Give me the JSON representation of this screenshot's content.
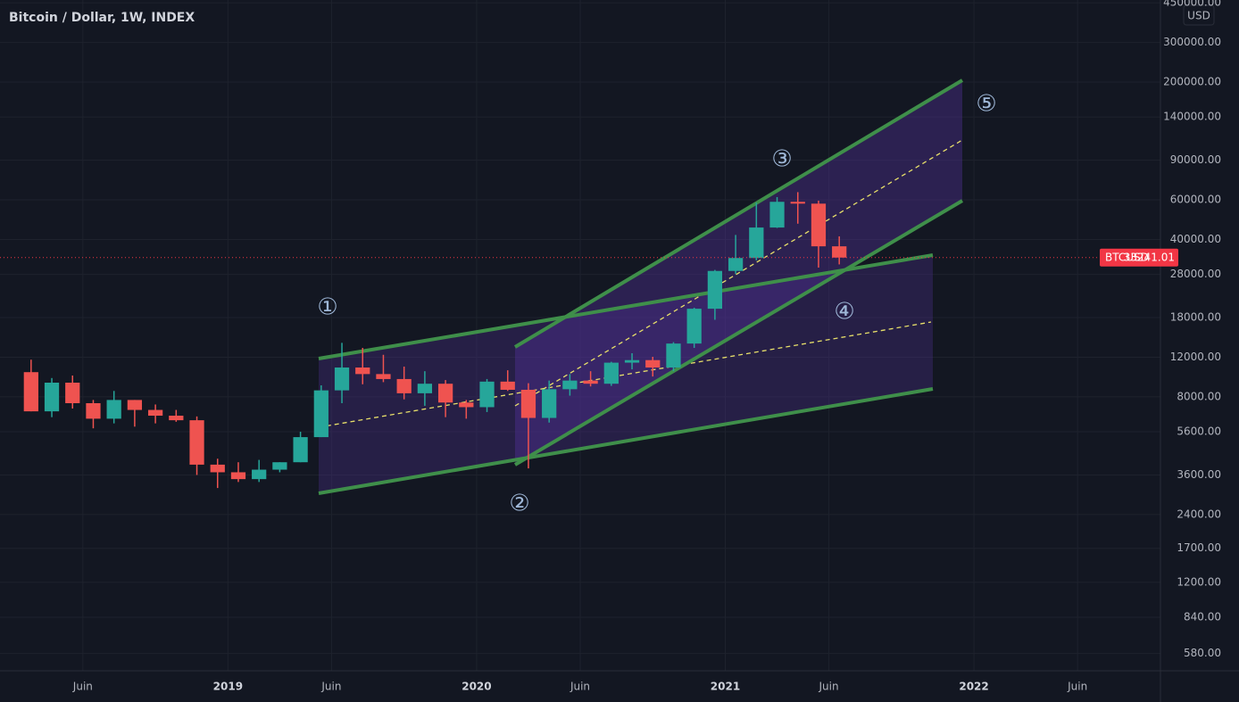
{
  "chart_data": {
    "type": "candlestick",
    "title": "Bitcoin / Dollar, 1W, INDEX",
    "currency": "USD",
    "x": [
      "2018-03",
      "2018-04",
      "2018-05",
      "2018-06",
      "2018-07",
      "2018-08",
      "2018-09",
      "2018-10",
      "2018-11",
      "2018-12",
      "2019-01",
      "2019-02",
      "2019-03",
      "2019-04",
      "2019-05",
      "2019-06",
      "2019-07",
      "2019-08",
      "2019-09",
      "2019-10",
      "2019-11",
      "2019-12",
      "2020-01",
      "2020-02",
      "2020-03",
      "2020-04",
      "2020-05",
      "2020-06",
      "2020-07",
      "2020-08",
      "2020-09",
      "2020-10",
      "2020-11",
      "2020-12",
      "2021-01",
      "2021-02",
      "2021-03",
      "2021-04",
      "2021-05",
      "2021-06"
    ],
    "open": [
      10300,
      6900,
      9250,
      7500,
      6400,
      7750,
      7000,
      6600,
      6300,
      4000,
      3700,
      3450,
      3800,
      4100,
      5300,
      8550,
      10800,
      10100,
      9600,
      8300,
      9150,
      7550,
      7200,
      9350,
      8600,
      6450,
      8650,
      9450,
      9150,
      11350,
      11650,
      10800,
      13800,
      19700,
      29000,
      33100,
      45200,
      58800,
      57700,
      37300
    ],
    "high": [
      11700,
      9700,
      9950,
      7750,
      8500,
      7750,
      7400,
      7000,
      6550,
      4250,
      4100,
      4200,
      4100,
      5600,
      9000,
      13900,
      13200,
      12300,
      10900,
      10400,
      9500,
      7750,
      9600,
      10500,
      9200,
      9450,
      10100,
      10400,
      11450,
      12500,
      12050,
      14000,
      19900,
      29300,
      41900,
      58300,
      61700,
      64900,
      59500,
      41300
    ],
    "low": [
      6900,
      6500,
      7100,
      5800,
      6100,
      5900,
      6100,
      6200,
      3600,
      3150,
      3350,
      3350,
      3700,
      4100,
      5300,
      7500,
      9100,
      9300,
      7800,
      7300,
      6500,
      6400,
      6850,
      8500,
      3850,
      6150,
      8100,
      8900,
      8950,
      10600,
      9850,
      10400,
      13200,
      17600,
      28100,
      32300,
      45000,
      47000,
      30000,
      31000
    ],
    "close": [
      6900,
      9250,
      7500,
      6400,
      7750,
      7000,
      6600,
      6300,
      4000,
      3700,
      3450,
      3800,
      4100,
      5300,
      8550,
      10800,
      10100,
      9600,
      8300,
      9150,
      7550,
      7200,
      9350,
      8600,
      6450,
      8650,
      9450,
      9150,
      11350,
      11650,
      10800,
      13800,
      19700,
      29000,
      33100,
      45200,
      58800,
      57700,
      37300,
      33241.01
    ],
    "up_color": "#26a69a",
    "down_color": "#ef5350",
    "log_scale": true,
    "grid": true,
    "xlim": [
      "2018-02",
      "2022-10"
    ],
    "xticks": [
      {
        "value": "2018-06",
        "label": "Juin"
      },
      {
        "value": "2019-01",
        "label": "2019"
      },
      {
        "value": "2019-06",
        "label": "Juin"
      },
      {
        "value": "2020-01",
        "label": "2020"
      },
      {
        "value": "2020-06",
        "label": "Juin"
      },
      {
        "value": "2021-01",
        "label": "2021"
      },
      {
        "value": "2021-06",
        "label": "Juin"
      },
      {
        "value": "2022-01",
        "label": "2022"
      },
      {
        "value": "2022-06",
        "label": "Juin"
      }
    ],
    "ylim": [
      486,
      463000
    ],
    "yticks": [
      {
        "value": 580,
        "label": "580.00"
      },
      {
        "value": 840,
        "label": "840.00"
      },
      {
        "value": 1200,
        "label": "1200.00"
      },
      {
        "value": 1700,
        "label": "1700.00"
      },
      {
        "value": 2400,
        "label": "2400.00"
      },
      {
        "value": 3600,
        "label": "3600.00"
      },
      {
        "value": 5600,
        "label": "5600.00"
      },
      {
        "value": 8000,
        "label": "8000.00"
      },
      {
        "value": 12000,
        "label": "12000.00"
      },
      {
        "value": 18000,
        "label": "18000.00"
      },
      {
        "value": 28000,
        "label": "28000.00"
      },
      {
        "value": 40000,
        "label": "40000.00"
      },
      {
        "value": 60000,
        "label": "60000.00"
      },
      {
        "value": 90000,
        "label": "90000.00"
      },
      {
        "value": 140000,
        "label": "140000.00"
      },
      {
        "value": 200000,
        "label": "200000.00"
      },
      {
        "value": 300000,
        "label": "300000.00"
      },
      {
        "value": 450000,
        "label": "450000.00"
      }
    ],
    "last_price": {
      "symbol": "BTCUSD",
      "value": 33241.01,
      "color": "#f23645"
    },
    "annotations": [
      "①",
      "②",
      "③",
      "④",
      "⑤"
    ]
  }
}
